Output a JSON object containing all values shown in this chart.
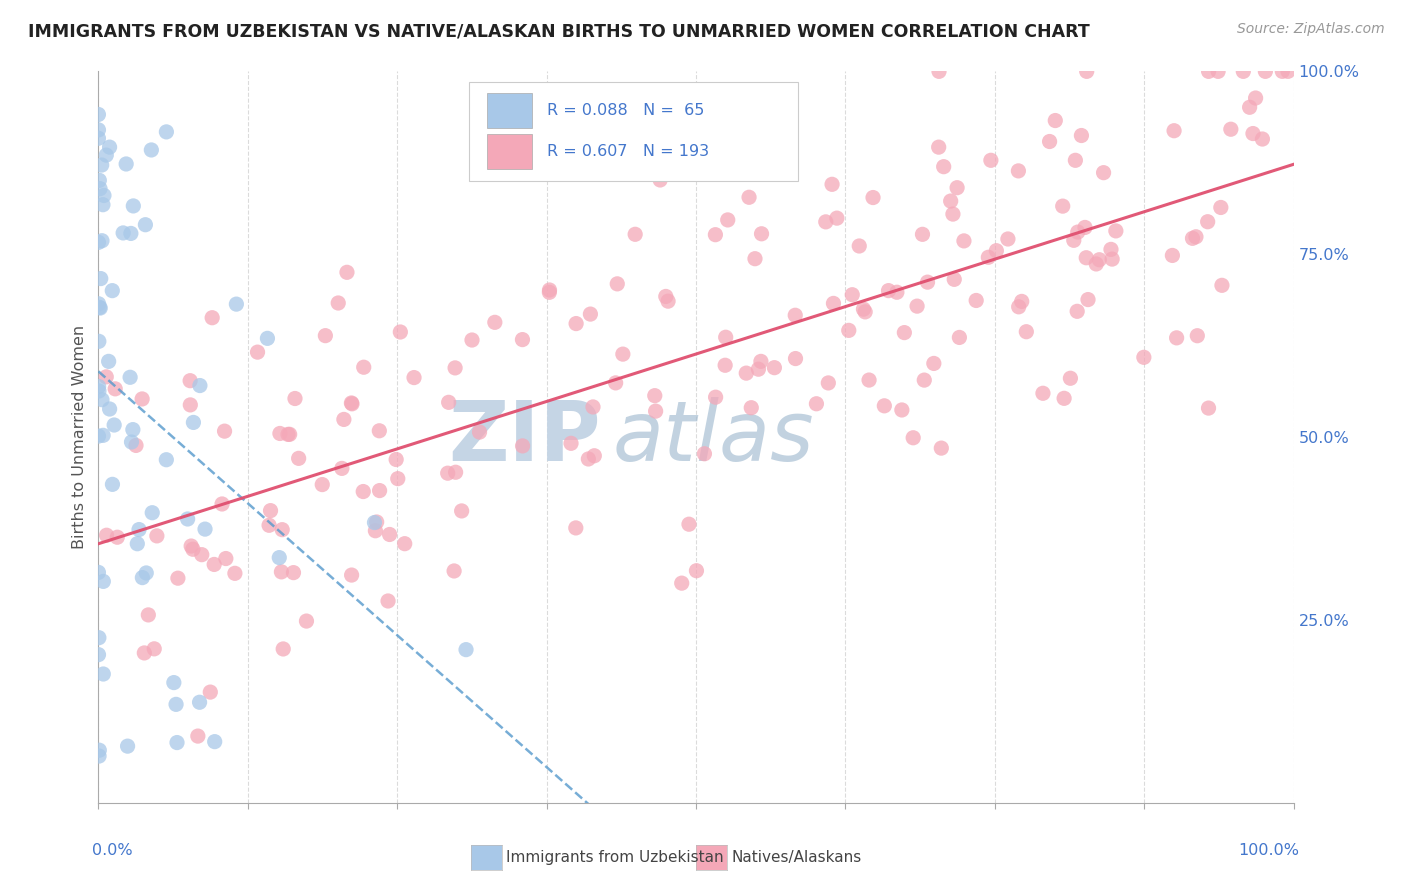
{
  "title": "IMMIGRANTS FROM UZBEKISTAN VS NATIVE/ALASKAN BIRTHS TO UNMARRIED WOMEN CORRELATION CHART",
  "source": "Source: ZipAtlas.com",
  "ylabel": "Births to Unmarried Women",
  "legend_blue_text": "R = 0.088   N =  65",
  "legend_pink_text": "R = 0.607   N = 193",
  "legend_label_blue": "Immigrants from Uzbekistan",
  "legend_label_pink": "Natives/Alaskans",
  "blue_color": "#a8c8e8",
  "blue_edge_color": "#80a8cc",
  "pink_color": "#f4a8b8",
  "pink_edge_color": "#e080a0",
  "blue_line_color": "#5599cc",
  "pink_line_color": "#e05070",
  "axis_color": "#4477cc",
  "grid_color": "#cccccc",
  "title_color": "#222222",
  "source_color": "#999999",
  "ylabel_color": "#555555",
  "watermark_zip_color": "#c5d5e5",
  "watermark_atlas_color": "#9ab5cc",
  "figsize": [
    14.06,
    8.92
  ],
  "dpi": 100,
  "right_yticks": [
    0.25,
    0.5,
    0.75,
    1.0
  ],
  "right_yticklabels": [
    "25.0%",
    "50.0%",
    "75.0%",
    "100.0%"
  ],
  "blue_seed": 42,
  "pink_seed": 99
}
